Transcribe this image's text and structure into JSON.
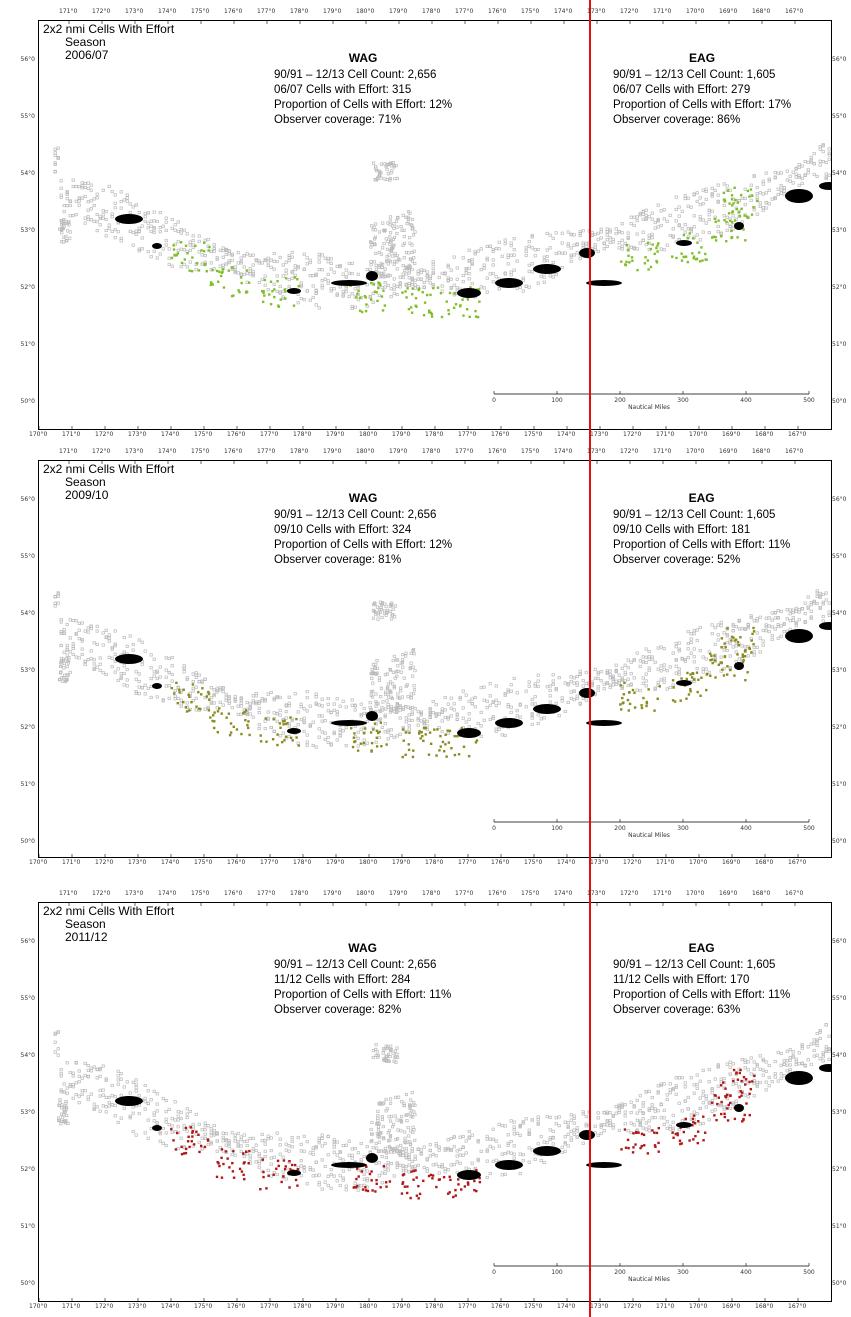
{
  "top_lon_labels": [
    "171°0",
    "172°0",
    "173°0",
    "174°0",
    "175°0",
    "176°0",
    "177°0",
    "178°0",
    "179°0",
    "180°0",
    "179°0",
    "178°0",
    "177°0",
    "176°0",
    "175°0",
    "174°0",
    "173°0",
    "172°0",
    "171°0",
    "170°0",
    "169°0",
    "168°0",
    "167°0"
  ],
  "bottom_lon_labels": [
    "170°0",
    "171°0",
    "172°0",
    "173°0",
    "174°0",
    "175°0",
    "176°0",
    "177°0",
    "178°0",
    "179°0",
    "180°0",
    "179°0",
    "178°0",
    "177°0",
    "176°0",
    "175°0",
    "174°0",
    "173°0",
    "172°0",
    "171°0",
    "170°0",
    "169°0",
    "168°0",
    "167°0"
  ],
  "lat_labels": [
    "56°0",
    "55°0",
    "54°0",
    "53°0",
    "52°0",
    "51°0",
    "50°0"
  ],
  "scale": {
    "ticks": [
      "0",
      "100",
      "200",
      "300",
      "400",
      "500"
    ],
    "unit": "Nautical Miles"
  },
  "panels": [
    {
      "title": "2x2 nmi Cells With Effort",
      "season_label": "Season",
      "season": "2006/07",
      "effort_color": "#7fbf2a",
      "wag": {
        "head": "WAG",
        "line1": "90/91 – 12/13 Cell Count: 2,656",
        "line2": "06/07 Cells with Effort: 315",
        "line3": "Proportion of Cells with Effort: 12%",
        "line4": "Observer coverage: 71%"
      },
      "eag": {
        "head": "EAG",
        "line1": "90/91 – 12/13 Cell Count: 1,605",
        "line2": "06/07 Cells with Effort: 279",
        "line3": "Proportion of Cells with Effort: 17%",
        "line4": "Observer coverage: 86%"
      }
    },
    {
      "title": "2x2 nmi Cells With Effort",
      "season_label": "Season",
      "season": "2009/10",
      "effort_color": "#8a8a1e",
      "wag": {
        "head": "WAG",
        "line1": "90/91 – 12/13 Cell Count: 2,656",
        "line2": "09/10 Cells with Effort: 324",
        "line3": "Proportion of Cells with Effort: 12%",
        "line4": "Observer coverage: 81%"
      },
      "eag": {
        "head": "EAG",
        "line1": "90/91 – 12/13 Cell Count: 1,605",
        "line2": "09/10 Cells with Effort: 181",
        "line3": "Proportion of Cells with Effort: 11%",
        "line4": "Observer coverage: 52%"
      }
    },
    {
      "title": "2x2 nmi Cells With Effort",
      "season_label": "Season",
      "season": "2011/12",
      "effort_color": "#b01818",
      "wag": {
        "head": "WAG",
        "line1": "90/91 – 12/13 Cell Count: 2,656",
        "line2": "11/12 Cells with Effort: 284",
        "line3": "Proportion of Cells with Effort: 11%",
        "line4": "Observer coverage: 82%"
      },
      "eag": {
        "head": "EAG",
        "line1": "90/91 – 12/13 Cell Count: 1,605",
        "line2": "11/12 Cells with Effort: 170",
        "line3": "Proportion of Cells with Effort: 11%",
        "line4": "Observer coverage: 63%"
      }
    }
  ],
  "divider_color": "#e01010",
  "cell_color": "#b9b9b9",
  "land_color": "#000000"
}
